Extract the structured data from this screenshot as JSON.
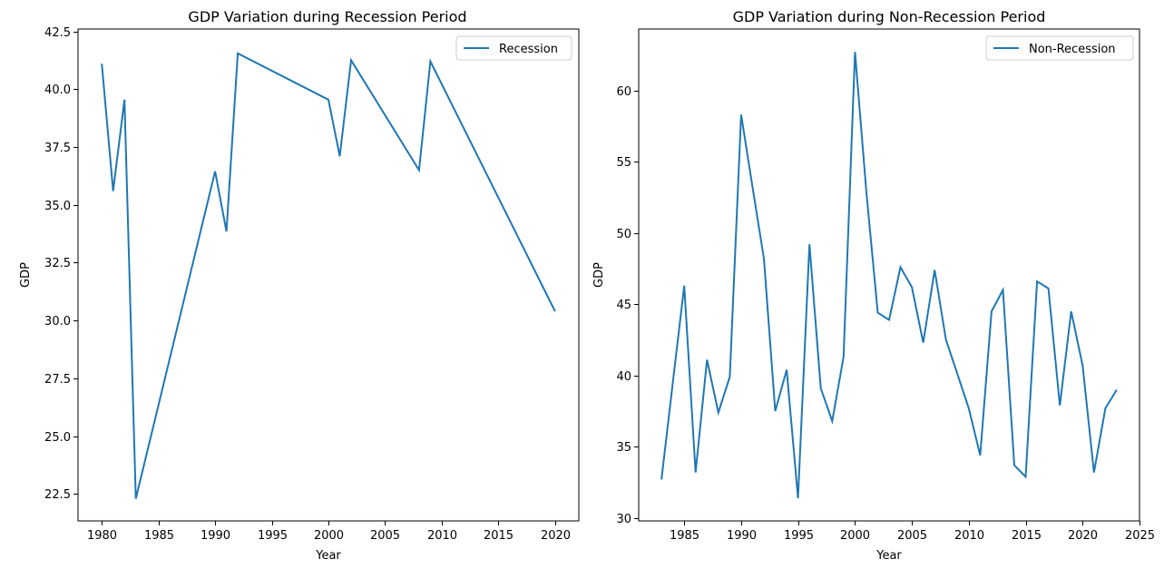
{
  "chart_data": [
    {
      "type": "line",
      "title": "GDP Variation during Recession Period",
      "xlabel": "Year",
      "ylabel": "GDP",
      "xlim": [
        1977.9,
        2022.1
      ],
      "ylim": [
        21.34,
        42.6
      ],
      "xticks": [
        1980,
        1985,
        1990,
        1995,
        2000,
        2005,
        2010,
        2015,
        2020
      ],
      "yticks": [
        22.5,
        25.0,
        27.5,
        30.0,
        32.5,
        35.0,
        37.5,
        40.0,
        42.5
      ],
      "ytick_labels": [
        "22.5",
        "25.0",
        "27.5",
        "30.0",
        "32.5",
        "35.0",
        "37.5",
        "40.0",
        "42.5"
      ],
      "grid": false,
      "legend": "top-right",
      "series": [
        {
          "name": "Recession",
          "color": "#1f77b4",
          "x": [
            1980,
            1981,
            1982,
            1983,
            1990,
            1991,
            1992,
            2000,
            2001,
            2002,
            2008,
            2009,
            2020
          ],
          "y": [
            41.1,
            35.6,
            39.55,
            22.3,
            36.45,
            33.85,
            41.55,
            39.55,
            37.1,
            41.25,
            36.5,
            41.2,
            30.4
          ]
        }
      ]
    },
    {
      "type": "line",
      "title": "GDP Variation during Non-Recession Period",
      "xlabel": "Year",
      "ylabel": "GDP",
      "xlim": [
        1981.0,
        2025.0
      ],
      "ylim": [
        29.8,
        64.3
      ],
      "xticks": [
        1985,
        1990,
        1995,
        2000,
        2005,
        2010,
        2015,
        2020,
        2025
      ],
      "yticks": [
        30,
        35,
        40,
        45,
        50,
        55,
        60
      ],
      "ytick_labels": [
        "30",
        "35",
        "40",
        "45",
        "50",
        "55",
        "60"
      ],
      "grid": false,
      "legend": "top-right",
      "series": [
        {
          "name": "Non-Recession",
          "color": "#1f77b4",
          "x": [
            1983,
            1984,
            1985,
            1986,
            1987,
            1988,
            1989,
            1990,
            1991,
            1992,
            1993,
            1994,
            1995,
            1996,
            1997,
            1998,
            1999,
            2000,
            2001,
            2002,
            2003,
            2004,
            2005,
            2006,
            2007,
            2008,
            2009,
            2010,
            2011,
            2012,
            2013,
            2014,
            2015,
            2016,
            2017,
            2018,
            2019,
            2020,
            2021,
            2022,
            2023
          ],
          "y": [
            32.7,
            39.5,
            46.3,
            33.2,
            41.1,
            37.4,
            39.9,
            58.3,
            53.2,
            48.2,
            37.5,
            40.4,
            31.4,
            49.2,
            39.1,
            36.8,
            41.3,
            62.7,
            52.9,
            44.4,
            43.9,
            47.6,
            46.2,
            42.3,
            47.4,
            42.5,
            40.1,
            37.7,
            34.4,
            44.5,
            46.0,
            33.7,
            32.9,
            46.6,
            46.1,
            37.9,
            44.5,
            40.7,
            33.2,
            37.7,
            39.0
          ]
        }
      ]
    }
  ]
}
